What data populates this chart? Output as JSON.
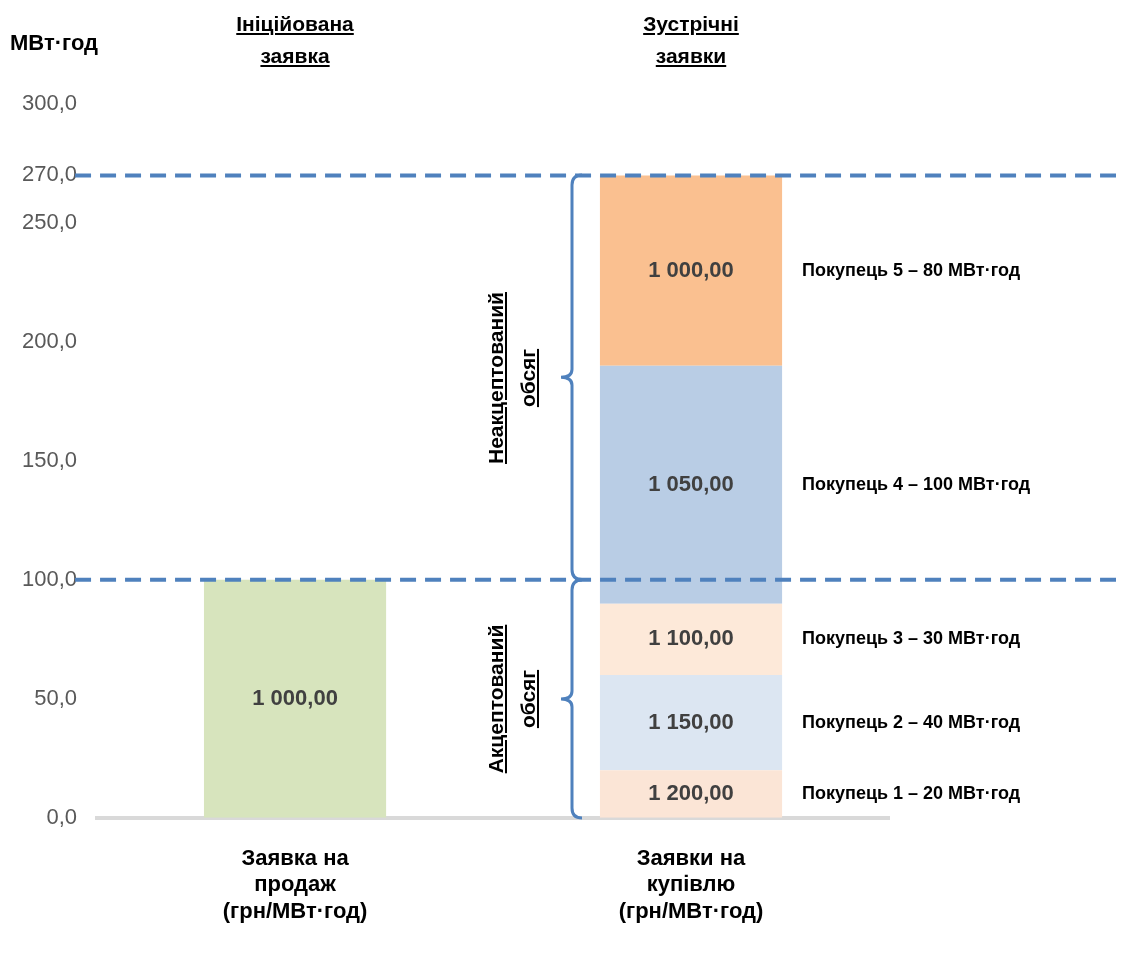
{
  "chart_data": {
    "type": "bar",
    "stacked": true,
    "ylabel": "МВт·год",
    "categories": [
      "Заявка на продаж (грн/МВт·год)",
      "Заявки на купівлю (грн/МВт·год)"
    ],
    "series": [
      {
        "color": "#d7e4bd",
        "values": [
          100,
          null
        ]
      },
      {
        "name": "Покупець 1 – 20 МВт·год",
        "color": "#fbe5d6",
        "values": [
          null,
          20
        ]
      },
      {
        "name": "Покупець 2 – 40 МВт·год",
        "color": "#dce6f2",
        "values": [
          null,
          40
        ]
      },
      {
        "name": "Покупець 3 – 30 МВт·год",
        "color": "#fde9d9",
        "values": [
          null,
          30
        ]
      },
      {
        "name": "Покупець 4 – 100 МВт·год",
        "color": "#b9cde5",
        "values": [
          null,
          100
        ]
      },
      {
        "name": "Покупець 5 – 80 МВт·год",
        "color": "#fac090",
        "values": [
          null,
          80
        ]
      }
    ],
    "ylim": [
      0,
      300
    ],
    "yticks": [
      {
        "value": 0,
        "label": "0,0"
      },
      {
        "value": 50,
        "label": "50,0"
      },
      {
        "value": 100,
        "label": "100,0"
      },
      {
        "value": 150,
        "label": "150,0"
      },
      {
        "value": 200,
        "label": "200,0"
      },
      {
        "value": 250,
        "label": "250,0"
      },
      {
        "value": 270,
        "label": "270,0"
      },
      {
        "value": 300,
        "label": "300,0"
      }
    ],
    "ref_lines": [
      {
        "axis": "y",
        "value": 100,
        "color": "#4f81bd",
        "line_style": "dashed"
      },
      {
        "axis": "y",
        "value": 270,
        "color": "#4f81bd",
        "line_style": "dashed"
      }
    ],
    "annotations": [
      "Ініційована заявка",
      "Зустрічні заявки",
      "Неакцептований обсяг",
      "Акцептований обсяг",
      "1 000,00",
      "1 200,00",
      "1 150,00",
      "1 100,00",
      "1 050,00",
      "1 000,00"
    ],
    "grid": false,
    "legend": false
  }
}
